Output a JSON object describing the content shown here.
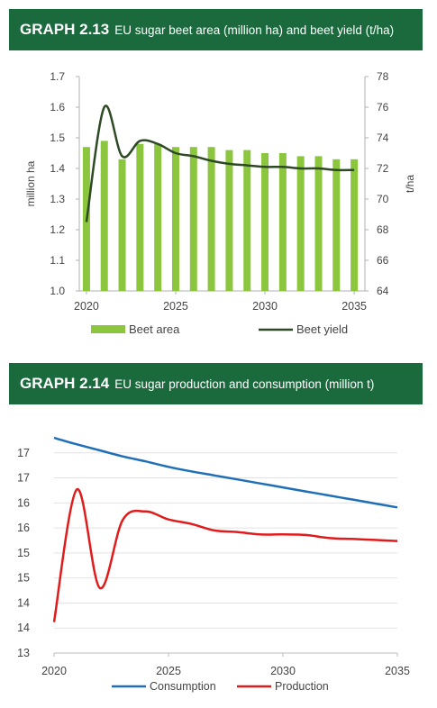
{
  "graph1": {
    "number": "GRAPH 2.13",
    "title": "EU sugar beet area (million ha) and beet yield (t/ha)"
  },
  "graph2": {
    "number": "GRAPH 2.14",
    "title": "EU sugar production and consumption (million t)"
  },
  "colors": {
    "banner": "#1a6a3d",
    "beet_area": "#8cc63f",
    "beet_yield": "#2d4a25",
    "consumption": "#1f6fb8",
    "production": "#e01b1b"
  },
  "chart_data": [
    {
      "type": "bar",
      "title": "EU sugar beet area (million ha) and beet yield (t/ha)",
      "x": [
        2020,
        2021,
        2022,
        2023,
        2024,
        2025,
        2026,
        2027,
        2028,
        2029,
        2030,
        2031,
        2032,
        2033,
        2034,
        2035
      ],
      "xticks": [
        2020,
        2025,
        2030,
        2035
      ],
      "xlim": [
        2019.6,
        2035.6
      ],
      "ylabel": "million ha",
      "ylim": [
        1.0,
        1.7
      ],
      "yticks": [
        "1.0",
        "1.1",
        "1.2",
        "1.3",
        "1.4",
        "1.5",
        "1.6",
        "1.7"
      ],
      "y2label": "t/ha",
      "y2lim": [
        64,
        78
      ],
      "y2ticks": [
        "64",
        "66",
        "68",
        "70",
        "72",
        "74",
        "76",
        "78"
      ],
      "series": [
        {
          "name": "Beet area",
          "type": "bar",
          "axis": "left",
          "values": [
            1.47,
            1.49,
            1.43,
            1.48,
            1.48,
            1.47,
            1.47,
            1.47,
            1.46,
            1.46,
            1.45,
            1.45,
            1.44,
            1.44,
            1.43,
            1.43
          ]
        },
        {
          "name": "Beet yield",
          "type": "line",
          "axis": "right",
          "x": [
            2020,
            2021,
            2022,
            2023,
            2024,
            2025,
            2026,
            2027,
            2028,
            2029,
            2030,
            2031,
            2032,
            2033,
            2034,
            2035
          ],
          "values": [
            68.5,
            76.0,
            72.8,
            73.8,
            73.6,
            73.0,
            72.8,
            72.5,
            72.3,
            72.2,
            72.1,
            72.1,
            72.0,
            72.0,
            71.9,
            71.9
          ]
        }
      ],
      "legend": "bottom",
      "grid": false
    },
    {
      "type": "line",
      "title": "EU sugar production and consumption (million t)",
      "x": [
        2020,
        2021,
        2022,
        2023,
        2024,
        2025,
        2026,
        2027,
        2028,
        2029,
        2030,
        2031,
        2032,
        2033,
        2034,
        2035
      ],
      "xticks": [
        2020,
        2025,
        2030,
        2035
      ],
      "xlim": [
        2020,
        2035
      ],
      "ylim": [
        13,
        17.5
      ],
      "yticks": [
        "13",
        "14",
        "14",
        "15",
        "15",
        "16",
        "16",
        "17",
        "17"
      ],
      "series": [
        {
          "name": "Consumption",
          "values": [
            17.3,
            17.17,
            17.05,
            16.93,
            16.83,
            16.72,
            16.63,
            16.55,
            16.47,
            16.39,
            16.31,
            16.23,
            16.15,
            16.07,
            15.99,
            15.91
          ]
        },
        {
          "name": "Production",
          "values": [
            13.62,
            16.27,
            14.3,
            15.66,
            15.83,
            15.67,
            15.58,
            15.45,
            15.42,
            15.37,
            15.37,
            15.36,
            15.3,
            15.28,
            15.26,
            15.24
          ]
        }
      ],
      "legend": "bottom",
      "grid": "horizontal"
    }
  ]
}
